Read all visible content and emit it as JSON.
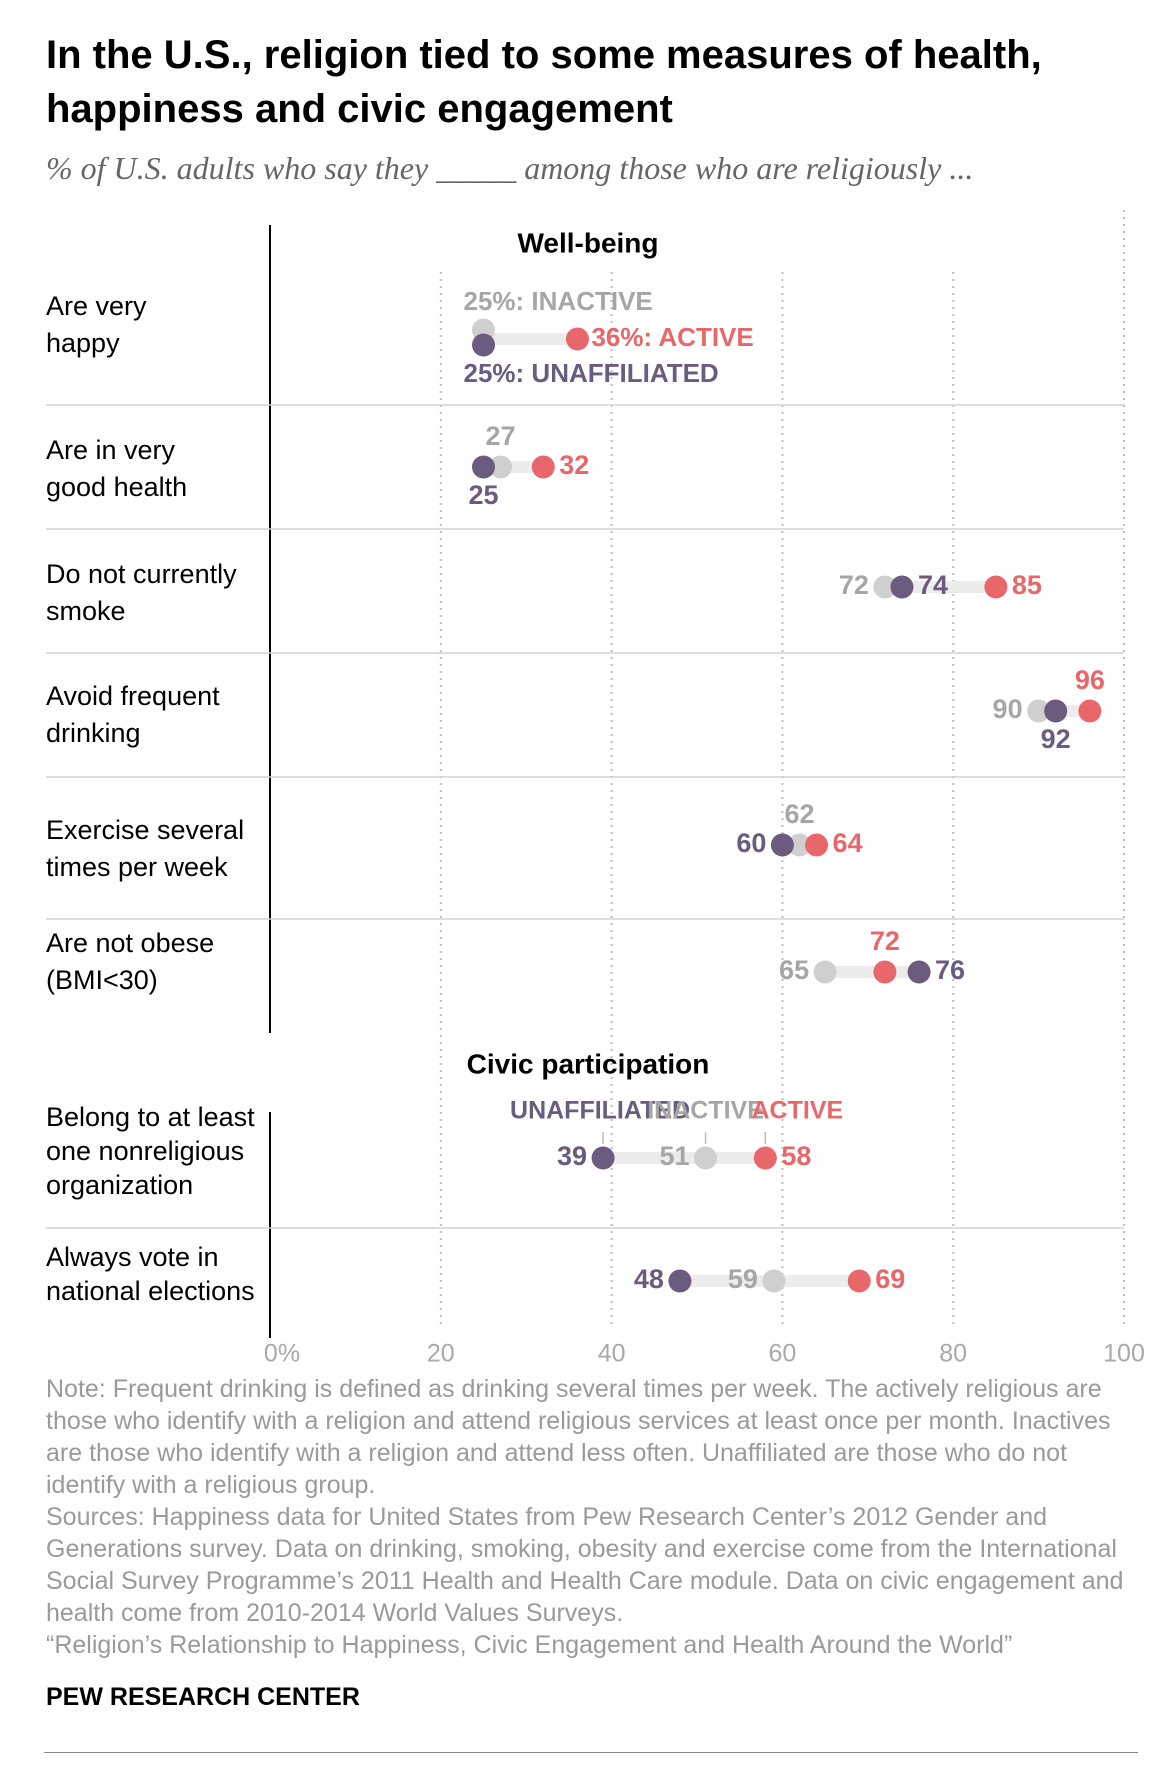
{
  "title": "In the U.S., religion tied to some measures of health, happiness and civic engagement",
  "subtitle": "% of U.S. adults who say they _____ among those who are religiously ...",
  "colors": {
    "active": "#e8676b",
    "inactive": "#cfcfcf",
    "unaffiliated": "#6b5b7e",
    "inactive_text": "#a6a6a6",
    "grid": "#bdbdbd"
  },
  "chart_data": {
    "type": "dot",
    "xlim": [
      0,
      100
    ],
    "x_ticks": [
      "0%",
      "20",
      "40",
      "60",
      "80",
      "100"
    ],
    "series_names": [
      "Unaffiliated",
      "Inactive",
      "Active"
    ],
    "sections": [
      {
        "title": "Well-being",
        "rows": [
          {
            "label": "Are very happy",
            "unaffiliated": 25,
            "inactive": 25,
            "active": 36,
            "annotations": {
              "inactive": "25%: INACTIVE",
              "active": "36%: ACTIVE",
              "unaffiliated": "25%: UNAFFILIATED"
            }
          },
          {
            "label": "Are in very good health",
            "unaffiliated": 25,
            "inactive": 27,
            "active": 32
          },
          {
            "label": "Do not currently smoke",
            "unaffiliated": 74,
            "inactive": 72,
            "active": 85
          },
          {
            "label": "Avoid frequent drinking",
            "unaffiliated": 92,
            "inactive": 90,
            "active": 96
          },
          {
            "label": "Exercise several times per week",
            "unaffiliated": 60,
            "inactive": 62,
            "active": 64
          },
          {
            "label": "Are not obese (BMI<30)",
            "unaffiliated": 76,
            "inactive": 65,
            "active": 72
          }
        ]
      },
      {
        "title": "Civic participation",
        "legend": {
          "unaffiliated": "UNAFFILIATED",
          "inactive": "INACTIVE",
          "active": "ACTIVE"
        },
        "rows": [
          {
            "label": "Belong to at least one nonreligious organization",
            "unaffiliated": 39,
            "inactive": 51,
            "active": 58
          },
          {
            "label": "Always vote in national elections",
            "unaffiliated": 48,
            "inactive": 59,
            "active": 69
          }
        ]
      }
    ]
  },
  "rowlabels": {
    "r1": [
      "Are very",
      "happy"
    ],
    "r2": [
      "Are in very",
      "good health"
    ],
    "r3": [
      "Do not currently",
      "smoke"
    ],
    "r4": [
      "Avoid frequent",
      "drinking"
    ],
    "r5": [
      "Exercise several",
      "times per week"
    ],
    "r6": [
      "Are not obese",
      "(BMI<30)"
    ],
    "r7": [
      "Belong to at least",
      "one nonreligious",
      "organization"
    ],
    "r8": [
      "Always vote in",
      "national elections"
    ]
  },
  "notes": [
    "Note: Frequent drinking is defined as drinking several times per week. The actively religious are those who identify with a religion and attend religious services at least once per month. Inactives are those who identify with a religion and attend less often. Unaffiliated are those who do not identify with a religious group.",
    "Sources: Happiness data for United States from Pew Research Center’s 2012 Gender and Generations survey. Data on drinking, smoking, obesity and exercise come from the International Social Survey Programme’s 2011 Health and Health Care module. Data on civic engagement and health come from 2010-2014 World Values Surveys.",
    "“Religion’s Relationship to Happiness, Civic Engagement and Health Around the World”"
  ],
  "brand": "PEW RESEARCH CENTER"
}
